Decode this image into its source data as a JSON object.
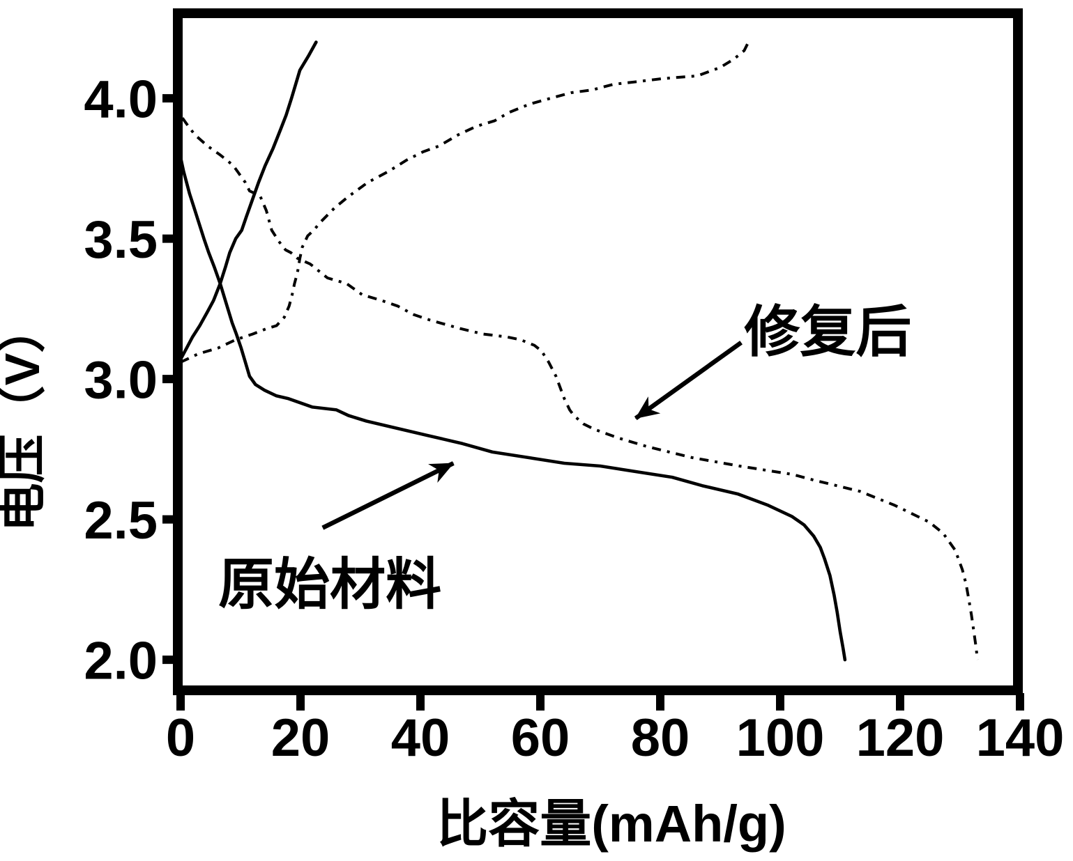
{
  "figure": {
    "background_color": "#ffffff",
    "line_color": "#000000"
  },
  "chart_data": {
    "type": "line",
    "title": "",
    "xlabel": "比容量(mAh/g)",
    "ylabel": "电压（V）",
    "xlim": [
      0,
      140
    ],
    "ylim": [
      1.891,
      4.303
    ],
    "grid": false,
    "legend_position": "none",
    "x_ticks": {
      "values": [
        0,
        20,
        40,
        60,
        80,
        100,
        120,
        140
      ],
      "labels": [
        "0",
        "20",
        "40",
        "60",
        "80",
        "100",
        "120",
        "140"
      ]
    },
    "y_ticks": {
      "values": [
        2.0,
        2.5,
        3.0,
        3.5,
        4.0
      ],
      "labels": [
        "2.0",
        "2.5",
        "3.0",
        "3.5",
        "4.0"
      ]
    },
    "series": [
      {
        "id": "original-material-charge",
        "label": "原始材料",
        "branch": "charge",
        "style": "solid",
        "points": [
          [
            0,
            3.07
          ],
          [
            1,
            3.11
          ],
          [
            2,
            3.15
          ],
          [
            3.2,
            3.19
          ],
          [
            4.5,
            3.24
          ],
          [
            5.5,
            3.28
          ],
          [
            6.6,
            3.34
          ],
          [
            7.5,
            3.4
          ],
          [
            8.2,
            3.45
          ],
          [
            9.2,
            3.5
          ],
          [
            10.2,
            3.53
          ],
          [
            11,
            3.58
          ],
          [
            12,
            3.64
          ],
          [
            13,
            3.7
          ],
          [
            14.1,
            3.76
          ],
          [
            15.4,
            3.82
          ],
          [
            16.7,
            3.89
          ],
          [
            17.6,
            3.94
          ],
          [
            18.5,
            4.0
          ],
          [
            19.9,
            4.1
          ],
          [
            21.3,
            4.15
          ],
          [
            22.6,
            4.2
          ]
        ]
      },
      {
        "id": "original-material-discharge",
        "label": "原始材料",
        "branch": "discharge",
        "style": "solid",
        "points": [
          [
            0,
            3.79
          ],
          [
            0.5,
            3.74
          ],
          [
            1,
            3.7
          ],
          [
            1.5,
            3.66
          ],
          [
            2.1,
            3.62
          ],
          [
            3,
            3.56
          ],
          [
            3.9,
            3.5
          ],
          [
            4.7,
            3.45
          ],
          [
            5.6,
            3.4
          ],
          [
            6.6,
            3.34
          ],
          [
            7.6,
            3.27
          ],
          [
            8.6,
            3.2
          ],
          [
            9.3,
            3.16
          ],
          [
            10.1,
            3.11
          ],
          [
            10.8,
            3.06
          ],
          [
            11.5,
            3.01
          ],
          [
            12.5,
            2.98
          ],
          [
            14,
            2.96
          ],
          [
            16,
            2.94
          ],
          [
            18,
            2.93
          ],
          [
            22,
            2.9
          ],
          [
            26,
            2.89
          ],
          [
            28,
            2.87
          ],
          [
            31,
            2.85
          ],
          [
            35,
            2.83
          ],
          [
            41,
            2.8
          ],
          [
            47,
            2.77
          ],
          [
            52,
            2.74
          ],
          [
            58,
            2.72
          ],
          [
            64,
            2.7
          ],
          [
            70,
            2.69
          ],
          [
            76,
            2.67
          ],
          [
            82,
            2.65
          ],
          [
            87,
            2.62
          ],
          [
            93,
            2.59
          ],
          [
            98,
            2.55
          ],
          [
            102,
            2.51
          ],
          [
            104,
            2.48
          ],
          [
            105.6,
            2.44
          ],
          [
            106.7,
            2.4
          ],
          [
            107.4,
            2.36
          ],
          [
            108.3,
            2.3
          ],
          [
            109,
            2.23
          ],
          [
            109.5,
            2.17
          ],
          [
            110,
            2.1
          ],
          [
            110.5,
            2.04
          ],
          [
            110.8,
            2.0
          ]
        ]
      },
      {
        "id": "restored-charge",
        "label": "修复后",
        "branch": "charge",
        "style": "dashdot",
        "points": [
          [
            0,
            3.06
          ],
          [
            3,
            3.09
          ],
          [
            6.2,
            3.11
          ],
          [
            9.2,
            3.14
          ],
          [
            12,
            3.16
          ],
          [
            14.4,
            3.18
          ],
          [
            16,
            3.19
          ],
          [
            17.3,
            3.22
          ],
          [
            18.1,
            3.26
          ],
          [
            18.6,
            3.3
          ],
          [
            19,
            3.34
          ],
          [
            19.5,
            3.38
          ],
          [
            19.9,
            3.43
          ],
          [
            20.3,
            3.47
          ],
          [
            21.2,
            3.51
          ],
          [
            22.2,
            3.53
          ],
          [
            23.4,
            3.56
          ],
          [
            25.7,
            3.61
          ],
          [
            28,
            3.65
          ],
          [
            31.2,
            3.7
          ],
          [
            34.7,
            3.74
          ],
          [
            37.7,
            3.78
          ],
          [
            40.5,
            3.81
          ],
          [
            43.1,
            3.83
          ],
          [
            46.3,
            3.87
          ],
          [
            49.3,
            3.9
          ],
          [
            52.4,
            3.92
          ],
          [
            54.8,
            3.95
          ],
          [
            58.3,
            3.98
          ],
          [
            61.7,
            4.0
          ],
          [
            65.2,
            4.02
          ],
          [
            68.7,
            4.03
          ],
          [
            72.2,
            4.05
          ],
          [
            76.5,
            4.06
          ],
          [
            80.3,
            4.07
          ],
          [
            86.2,
            4.08
          ],
          [
            90,
            4.11
          ],
          [
            92.3,
            4.14
          ],
          [
            94,
            4.17
          ],
          [
            94.7,
            4.2
          ]
        ]
      },
      {
        "id": "restored-discharge",
        "label": "修复后",
        "branch": "discharge",
        "style": "dashdot",
        "points": [
          [
            0.3,
            3.93
          ],
          [
            1.3,
            3.9
          ],
          [
            2.4,
            3.87
          ],
          [
            4.5,
            3.83
          ],
          [
            6.5,
            3.8
          ],
          [
            7.7,
            3.78
          ],
          [
            8.8,
            3.76
          ],
          [
            9.8,
            3.73
          ],
          [
            10.8,
            3.7
          ],
          [
            11.5,
            3.67
          ],
          [
            12.5,
            3.66
          ],
          [
            13.3,
            3.65
          ],
          [
            14.3,
            3.6
          ],
          [
            15.2,
            3.53
          ],
          [
            16.4,
            3.49
          ],
          [
            17.5,
            3.46
          ],
          [
            18.4,
            3.45
          ],
          [
            19.5,
            3.43
          ],
          [
            21.6,
            3.41
          ],
          [
            24.5,
            3.36
          ],
          [
            27.7,
            3.34
          ],
          [
            30.3,
            3.3
          ],
          [
            33.5,
            3.28
          ],
          [
            36.2,
            3.26
          ],
          [
            38.8,
            3.23
          ],
          [
            41.6,
            3.21
          ],
          [
            46.6,
            3.18
          ],
          [
            50.5,
            3.16
          ],
          [
            54.4,
            3.15
          ],
          [
            56.7,
            3.14
          ],
          [
            59,
            3.12
          ],
          [
            60.2,
            3.1
          ],
          [
            61.4,
            3.06
          ],
          [
            62.6,
            3.01
          ],
          [
            63.3,
            2.97
          ],
          [
            64,
            2.93
          ],
          [
            64.9,
            2.89
          ],
          [
            65.6,
            2.87
          ],
          [
            67.2,
            2.84
          ],
          [
            69.1,
            2.82
          ],
          [
            73,
            2.79
          ],
          [
            77.7,
            2.76
          ],
          [
            85.3,
            2.72
          ],
          [
            93.2,
            2.69
          ],
          [
            102.1,
            2.66
          ],
          [
            105.6,
            2.64
          ],
          [
            113.3,
            2.6
          ],
          [
            119.1,
            2.55
          ],
          [
            124.9,
            2.49
          ],
          [
            127.2,
            2.45
          ],
          [
            129.2,
            2.39
          ],
          [
            130.4,
            2.32
          ],
          [
            131,
            2.27
          ],
          [
            131.5,
            2.21
          ],
          [
            131.9,
            2.16
          ],
          [
            132.3,
            2.1
          ],
          [
            132.7,
            2.04
          ],
          [
            132.9,
            2.0
          ]
        ]
      }
    ],
    "annotations": [
      {
        "text": "修复后",
        "text_x": 94.0,
        "text_y": 3.1,
        "arrow": {
          "from_x": 93.5,
          "from_y": 3.13,
          "to_x": 75.9,
          "to_y": 2.86
        }
      },
      {
        "text": "原始材料",
        "text_x": 6.3,
        "text_y": 2.2,
        "arrow": {
          "from_x": 23.7,
          "from_y": 2.47,
          "to_x": 45.5,
          "to_y": 2.7
        }
      }
    ]
  }
}
